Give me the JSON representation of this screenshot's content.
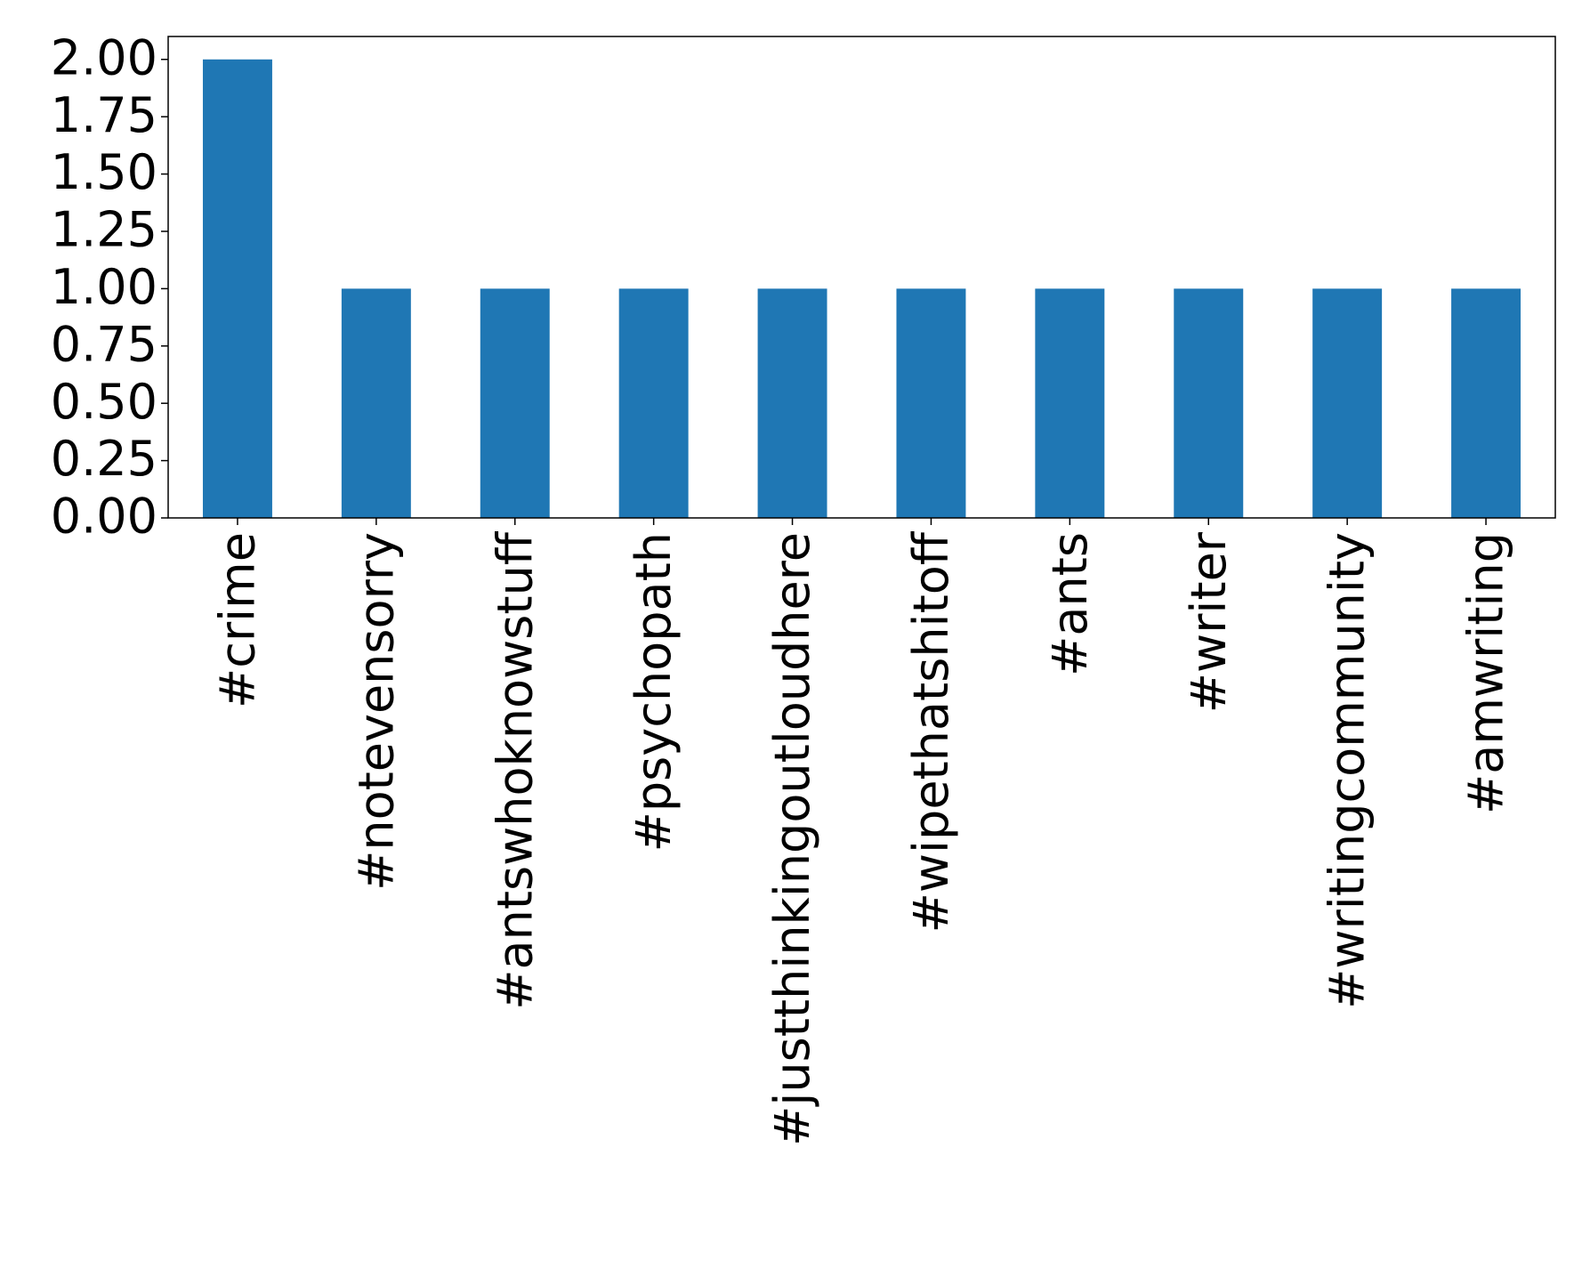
{
  "chart_data": {
    "type": "bar",
    "categories": [
      "#crime",
      "#notevensorry",
      "#antswhoknowstuff",
      "#psychopath",
      "#justthinkingoutloudhere",
      "#wipethatshitoff",
      "#ants",
      "#writer",
      "#writingcommunity",
      "#amwriting"
    ],
    "values": [
      2,
      1,
      1,
      1,
      1,
      1,
      1,
      1,
      1,
      1
    ],
    "color": "#1f77b4",
    "ylim": [
      0,
      2.1
    ],
    "yticks": [
      {
        "value": 0,
        "label": "0.00"
      },
      {
        "value": 0.25,
        "label": "0.25"
      },
      {
        "value": 0.5,
        "label": "0.50"
      },
      {
        "value": 0.75,
        "label": "0.75"
      },
      {
        "value": 1,
        "label": "1.00"
      },
      {
        "value": 1.25,
        "label": "1.25"
      },
      {
        "value": 1.5,
        "label": "1.50"
      },
      {
        "value": 1.75,
        "label": "1.75"
      },
      {
        "value": 2,
        "label": "2.00"
      }
    ],
    "grid": false
  }
}
